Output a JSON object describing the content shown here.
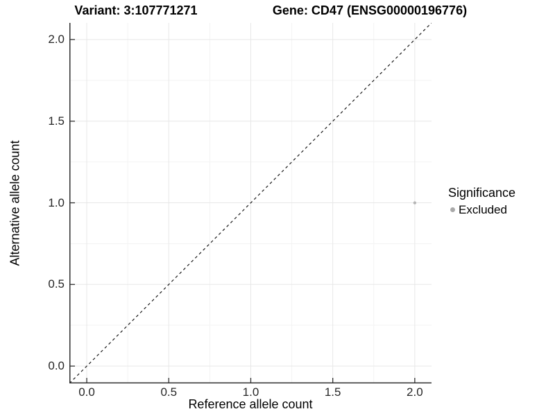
{
  "header": {
    "variant_title": "Variant: 3:107771271",
    "gene_title": "Gene: CD47 (ENSG00000196776)"
  },
  "chart_data": {
    "type": "scatter",
    "title": "Variant: 3:107771271   Gene: CD47 (ENSG00000196776)",
    "xlabel": "Reference allele count",
    "ylabel": "Alternative allele count",
    "xlim": [
      -0.106,
      2.102
    ],
    "ylim": [
      -0.106,
      2.102
    ],
    "major_ticks": [
      0,
      0.5,
      1,
      1.5,
      2
    ],
    "minor_ticks": [
      0.25,
      0.75,
      1.25,
      1.75
    ],
    "x_tick_labels": [
      "0.0",
      "0.5",
      "1.0",
      "1.5",
      "2.0"
    ],
    "y_tick_labels": [
      "0.0",
      "0.5",
      "1.0",
      "1.5",
      "2.0"
    ],
    "grid": "major+minor",
    "points": [
      {
        "x": 2.0,
        "y": 1.0,
        "series": "Excluded"
      }
    ],
    "identity_line": {
      "slope": 1,
      "intercept": 0,
      "style": "dashed"
    },
    "legend": {
      "position": "right",
      "title": "Significance",
      "entries": [
        {
          "label": "Excluded",
          "color": "#a9a9a9"
        }
      ]
    }
  },
  "colors": {
    "background": "#ffffff",
    "grid_major": "#e7e7e7",
    "grid_minor": "#f3f3f3",
    "axis_line": "#2f2f2f",
    "tick_mark": "#2f2f2f",
    "dashed_line": "#1a1a1a",
    "point": "#b5b5b5",
    "legend_point": "#a9a9a9",
    "tick_text": "#262626",
    "title_text": "#000000"
  }
}
